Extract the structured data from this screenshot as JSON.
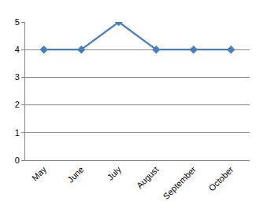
{
  "chart_data": {
    "type": "line",
    "categories": [
      "May",
      "June",
      "July",
      "August",
      "September",
      "October"
    ],
    "values": [
      4,
      4,
      5,
      4,
      4,
      4
    ],
    "color": "#4a7ebb",
    "marker": "diamond",
    "line_style": "solid",
    "ylim": [
      0,
      5
    ],
    "yticks": [
      0,
      1,
      2,
      3,
      4,
      5
    ],
    "grid": true
  }
}
